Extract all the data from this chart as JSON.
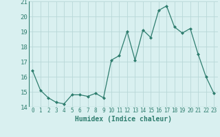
{
  "xlabel": "Humidex (Indice chaleur)",
  "x_values": [
    0,
    1,
    2,
    3,
    4,
    5,
    6,
    7,
    8,
    9,
    10,
    11,
    12,
    13,
    14,
    15,
    16,
    17,
    18,
    19,
    20,
    21,
    22,
    23
  ],
  "y_values": [
    16.4,
    15.1,
    14.6,
    14.3,
    14.2,
    14.8,
    14.8,
    14.7,
    14.9,
    14.6,
    17.1,
    17.4,
    19.0,
    17.1,
    19.1,
    18.6,
    20.4,
    20.7,
    19.3,
    18.9,
    19.2,
    17.5,
    16.0,
    14.9
  ],
  "line_color": "#2e7d6e",
  "marker": "D",
  "marker_size": 2.0,
  "bg_color": "#d9f0f0",
  "grid_color": "#b8d8d8",
  "ylim": [
    14,
    21
  ],
  "yticks": [
    14,
    15,
    16,
    17,
    18,
    19,
    20,
    21
  ],
  "xticks": [
    0,
    1,
    2,
    3,
    4,
    5,
    6,
    7,
    8,
    9,
    10,
    11,
    12,
    13,
    14,
    15,
    16,
    17,
    18,
    19,
    20,
    21,
    22,
    23
  ],
  "xlabel_fontsize": 7,
  "ytick_fontsize": 6.5,
  "xtick_fontsize": 5.5
}
